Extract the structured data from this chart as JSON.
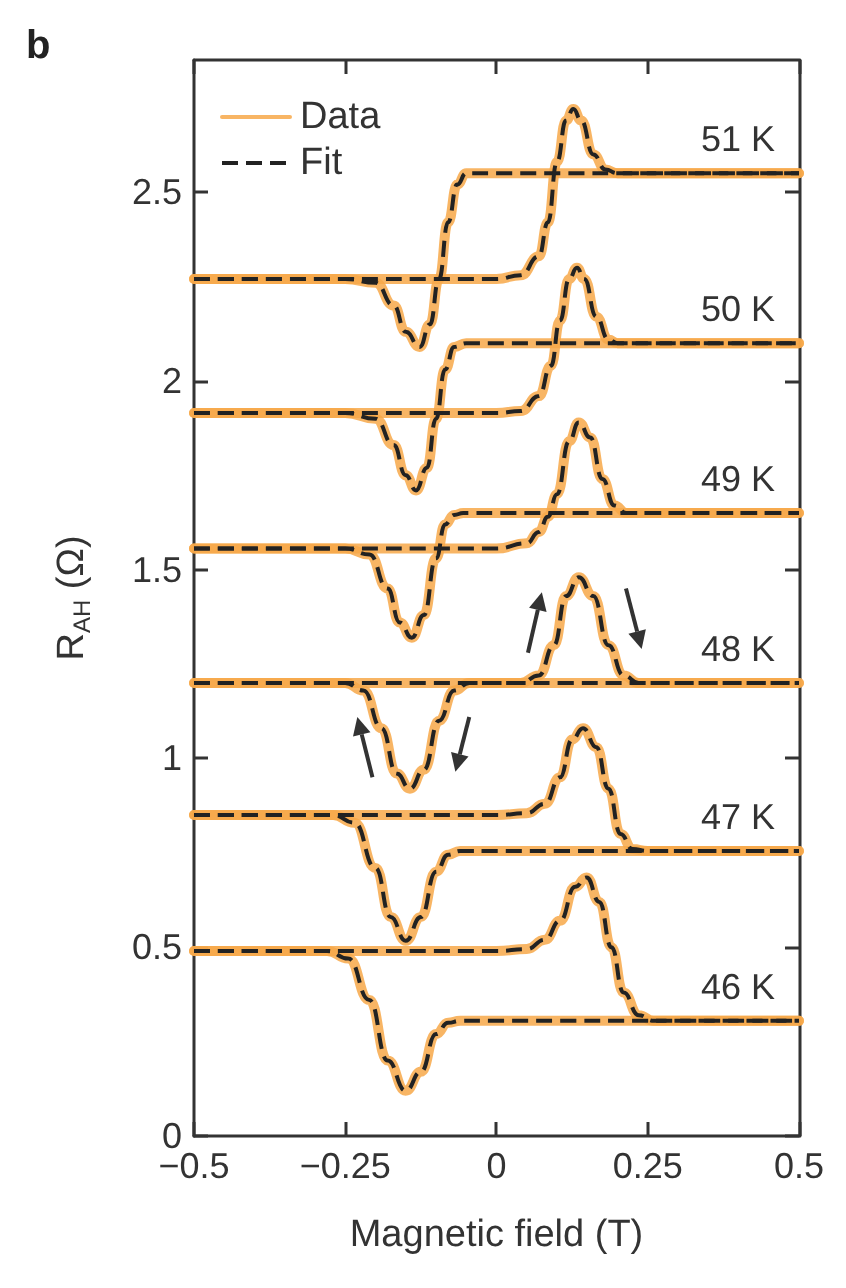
{
  "chart_data": {
    "type": "line",
    "title": "b",
    "xlabel": "Magnetic field (T)",
    "ylabel": "R$_{AH}$ (Ω)",
    "xlim": [
      -0.5,
      0.5
    ],
    "xticks": [
      {
        "value": -0.5,
        "label": "−0.5"
      },
      {
        "value": -0.25,
        "label": "−0.25"
      },
      0,
      0.25,
      0.5
    ],
    "ylim": [
      0,
      2.85
    ],
    "yticks": [
      0,
      0.5,
      1,
      1.5,
      2,
      2.5
    ],
    "grid": false,
    "legend": "top left",
    "annotations": [
      "51 K",
      "50 K",
      "49 K",
      "48 K",
      "47 K",
      "46 K"
    ],
    "series": [
      {
        "name": "Data",
        "color": "#f7a849",
        "line_style": "solid",
        "x": [
          -0.5,
          -0.25,
          -0.2,
          -0.17,
          -0.15,
          -0.127,
          -0.11,
          -0.095,
          -0.08,
          -0.065,
          -0.05,
          0,
          0.5
        ],
        "values": [
          2.27,
          2.27,
          2.26,
          2.2,
          2.13,
          2.09,
          2.15,
          2.27,
          2.42,
          2.52,
          2.55,
          2.55,
          2.55
        ]
      },
      {
        "color": "#f7a849",
        "line_style": "solid",
        "x": [
          -0.5,
          0,
          0.04,
          0.07,
          0.085,
          0.1,
          0.115,
          0.127,
          0.14,
          0.16,
          0.18,
          0.2,
          0.5
        ],
        "values": [
          2.27,
          2.27,
          2.28,
          2.33,
          2.42,
          2.58,
          2.69,
          2.72,
          2.69,
          2.6,
          2.56,
          2.55,
          2.55
        ]
      },
      {
        "color": "#f7a849",
        "line_style": "solid",
        "x": [
          -0.5,
          -0.25,
          -0.2,
          -0.17,
          -0.15,
          -0.133,
          -0.115,
          -0.1,
          -0.085,
          -0.07,
          -0.05,
          0,
          0.5
        ],
        "values": [
          1.915,
          1.915,
          1.9,
          1.83,
          1.75,
          1.71,
          1.77,
          1.9,
          2.03,
          2.09,
          2.1,
          2.1,
          2.1
        ]
      },
      {
        "color": "#f7a849",
        "line_style": "solid",
        "x": [
          -0.5,
          0,
          0.04,
          0.07,
          0.09,
          0.105,
          0.12,
          0.133,
          0.145,
          0.165,
          0.185,
          0.2,
          0.5
        ],
        "values": [
          1.915,
          1.915,
          1.92,
          1.96,
          2.04,
          2.16,
          2.27,
          2.3,
          2.27,
          2.17,
          2.11,
          2.1,
          2.1
        ]
      },
      {
        "color": "#f7a849",
        "line_style": "solid",
        "x": [
          -0.5,
          -0.25,
          -0.21,
          -0.18,
          -0.16,
          -0.14,
          -0.12,
          -0.1,
          -0.085,
          -0.07,
          -0.055,
          0,
          0.5
        ],
        "values": [
          1.556,
          1.556,
          1.54,
          1.45,
          1.36,
          1.32,
          1.38,
          1.53,
          1.62,
          1.645,
          1.65,
          1.65,
          1.65
        ]
      },
      {
        "color": "#f7a849",
        "line_style": "solid",
        "x": [
          -0.5,
          0,
          0.05,
          0.07,
          0.085,
          0.1,
          0.12,
          0.136,
          0.155,
          0.175,
          0.195,
          0.215,
          0.5
        ],
        "values": [
          1.556,
          1.556,
          1.57,
          1.6,
          1.64,
          1.7,
          1.84,
          1.89,
          1.85,
          1.74,
          1.67,
          1.65,
          1.65
        ]
      },
      {
        "color": "#f7a849",
        "line_style": "solid",
        "x": [
          -0.5,
          -0.25,
          -0.22,
          -0.19,
          -0.165,
          -0.143,
          -0.12,
          -0.095,
          -0.07,
          -0.045,
          0,
          0.5
        ],
        "values": [
          1.2,
          1.2,
          1.18,
          1.08,
          0.96,
          0.92,
          0.97,
          1.1,
          1.18,
          1.2,
          1.2,
          1.2
        ]
      },
      {
        "color": "#f7a849",
        "line_style": "solid",
        "x": [
          -0.5,
          0,
          0.04,
          0.07,
          0.095,
          0.115,
          0.136,
          0.16,
          0.185,
          0.21,
          0.235,
          0.5
        ],
        "values": [
          1.2,
          1.2,
          1.2,
          1.22,
          1.3,
          1.43,
          1.48,
          1.43,
          1.3,
          1.22,
          1.2,
          1.2
        ]
      },
      {
        "color": "#f7a849",
        "line_style": "solid",
        "x": [
          -0.5,
          -0.27,
          -0.235,
          -0.2,
          -0.175,
          -0.15,
          -0.125,
          -0.1,
          -0.08,
          -0.06,
          0,
          0.5
        ],
        "values": [
          0.85,
          0.85,
          0.83,
          0.71,
          0.58,
          0.517,
          0.58,
          0.7,
          0.745,
          0.755,
          0.755,
          0.755
        ]
      },
      {
        "color": "#f7a849",
        "line_style": "solid",
        "x": [
          -0.5,
          0,
          0.05,
          0.08,
          0.105,
          0.125,
          0.143,
          0.165,
          0.185,
          0.205,
          0.225,
          0.25,
          0.5
        ],
        "values": [
          0.85,
          0.85,
          0.855,
          0.88,
          0.95,
          1.05,
          1.08,
          1.03,
          0.92,
          0.8,
          0.76,
          0.755,
          0.755
        ]
      },
      {
        "color": "#f7a849",
        "line_style": "solid",
        "x": [
          -0.5,
          -0.28,
          -0.245,
          -0.21,
          -0.18,
          -0.15,
          -0.125,
          -0.1,
          -0.08,
          -0.06,
          0,
          0.5
        ],
        "values": [
          0.49,
          0.49,
          0.47,
          0.36,
          0.2,
          0.12,
          0.17,
          0.27,
          0.3,
          0.305,
          0.305,
          0.305
        ]
      },
      {
        "color": "#f7a849",
        "line_style": "solid",
        "x": [
          -0.5,
          0,
          0.05,
          0.08,
          0.105,
          0.13,
          0.149,
          0.17,
          0.19,
          0.21,
          0.235,
          0.26,
          0.5
        ],
        "values": [
          0.49,
          0.49,
          0.495,
          0.52,
          0.57,
          0.66,
          0.685,
          0.62,
          0.5,
          0.38,
          0.32,
          0.305,
          0.305
        ]
      },
      {
        "name": "Fit",
        "color": "#222222",
        "line_style": "dashed",
        "x": [
          -0.5,
          -0.25,
          -0.2,
          -0.17,
          -0.15,
          -0.127,
          -0.11,
          -0.095,
          -0.08,
          -0.065,
          -0.05,
          0,
          0.5
        ],
        "values": [
          2.27,
          2.27,
          2.26,
          2.2,
          2.13,
          2.09,
          2.15,
          2.27,
          2.42,
          2.52,
          2.55,
          2.55,
          2.55
        ]
      },
      {
        "color": "#222222",
        "line_style": "dashed",
        "x": [
          -0.5,
          0,
          0.04,
          0.07,
          0.085,
          0.1,
          0.115,
          0.127,
          0.14,
          0.16,
          0.18,
          0.2,
          0.5
        ],
        "values": [
          2.27,
          2.27,
          2.28,
          2.33,
          2.42,
          2.58,
          2.69,
          2.72,
          2.69,
          2.6,
          2.56,
          2.55,
          2.55
        ]
      },
      {
        "color": "#222222",
        "line_style": "dashed",
        "x": [
          -0.5,
          -0.25,
          -0.2,
          -0.17,
          -0.15,
          -0.133,
          -0.115,
          -0.1,
          -0.085,
          -0.07,
          -0.05,
          0,
          0.5
        ],
        "values": [
          1.915,
          1.915,
          1.9,
          1.83,
          1.75,
          1.71,
          1.77,
          1.9,
          2.03,
          2.09,
          2.1,
          2.1,
          2.1
        ]
      },
      {
        "color": "#222222",
        "line_style": "dashed",
        "x": [
          -0.5,
          0,
          0.04,
          0.07,
          0.09,
          0.105,
          0.12,
          0.133,
          0.145,
          0.165,
          0.185,
          0.2,
          0.5
        ],
        "values": [
          1.915,
          1.915,
          1.92,
          1.96,
          2.04,
          2.16,
          2.27,
          2.3,
          2.27,
          2.17,
          2.11,
          2.1,
          2.1
        ]
      },
      {
        "color": "#222222",
        "line_style": "dashed",
        "x": [
          -0.5,
          -0.25,
          -0.21,
          -0.18,
          -0.16,
          -0.14,
          -0.12,
          -0.1,
          -0.085,
          -0.07,
          -0.055,
          0,
          0.5
        ],
        "values": [
          1.556,
          1.556,
          1.54,
          1.45,
          1.36,
          1.32,
          1.38,
          1.53,
          1.62,
          1.645,
          1.65,
          1.65,
          1.65
        ]
      },
      {
        "color": "#222222",
        "line_style": "dashed",
        "x": [
          -0.5,
          0,
          0.05,
          0.07,
          0.085,
          0.1,
          0.12,
          0.136,
          0.155,
          0.175,
          0.195,
          0.215,
          0.5
        ],
        "values": [
          1.556,
          1.556,
          1.57,
          1.6,
          1.64,
          1.7,
          1.84,
          1.89,
          1.85,
          1.74,
          1.67,
          1.65,
          1.65
        ]
      },
      {
        "color": "#222222",
        "line_style": "dashed",
        "x": [
          -0.5,
          -0.25,
          -0.22,
          -0.19,
          -0.165,
          -0.143,
          -0.12,
          -0.095,
          -0.07,
          -0.045,
          0,
          0.5
        ],
        "values": [
          1.2,
          1.2,
          1.18,
          1.08,
          0.96,
          0.92,
          0.97,
          1.1,
          1.18,
          1.2,
          1.2,
          1.2
        ]
      },
      {
        "color": "#222222",
        "line_style": "dashed",
        "x": [
          -0.5,
          0,
          0.04,
          0.07,
          0.095,
          0.115,
          0.136,
          0.16,
          0.185,
          0.21,
          0.235,
          0.5
        ],
        "values": [
          1.2,
          1.2,
          1.2,
          1.22,
          1.3,
          1.43,
          1.48,
          1.43,
          1.3,
          1.22,
          1.2,
          1.2
        ]
      },
      {
        "color": "#222222",
        "line_style": "dashed",
        "x": [
          -0.5,
          -0.27,
          -0.235,
          -0.2,
          -0.175,
          -0.15,
          -0.125,
          -0.1,
          -0.08,
          -0.06,
          0,
          0.5
        ],
        "values": [
          0.85,
          0.85,
          0.83,
          0.71,
          0.58,
          0.517,
          0.58,
          0.7,
          0.745,
          0.755,
          0.755,
          0.755
        ]
      },
      {
        "color": "#222222",
        "line_style": "dashed",
        "x": [
          -0.5,
          0,
          0.05,
          0.08,
          0.105,
          0.125,
          0.143,
          0.165,
          0.185,
          0.205,
          0.225,
          0.25,
          0.5
        ],
        "values": [
          0.85,
          0.85,
          0.855,
          0.88,
          0.95,
          1.05,
          1.08,
          1.03,
          0.92,
          0.8,
          0.76,
          0.755,
          0.755
        ]
      },
      {
        "color": "#222222",
        "line_style": "dashed",
        "x": [
          -0.5,
          -0.28,
          -0.245,
          -0.21,
          -0.18,
          -0.15,
          -0.125,
          -0.1,
          -0.08,
          -0.06,
          0,
          0.5
        ],
        "values": [
          0.49,
          0.49,
          0.47,
          0.36,
          0.2,
          0.12,
          0.17,
          0.27,
          0.3,
          0.305,
          0.305,
          0.305
        ]
      },
      {
        "color": "#222222",
        "line_style": "dashed",
        "x": [
          -0.5,
          0,
          0.05,
          0.08,
          0.105,
          0.13,
          0.149,
          0.17,
          0.19,
          0.21,
          0.235,
          0.26,
          0.5
        ],
        "values": [
          0.49,
          0.49,
          0.495,
          0.52,
          0.57,
          0.66,
          0.685,
          0.62,
          0.5,
          0.38,
          0.32,
          0.305,
          0.305
        ]
      }
    ]
  }
}
